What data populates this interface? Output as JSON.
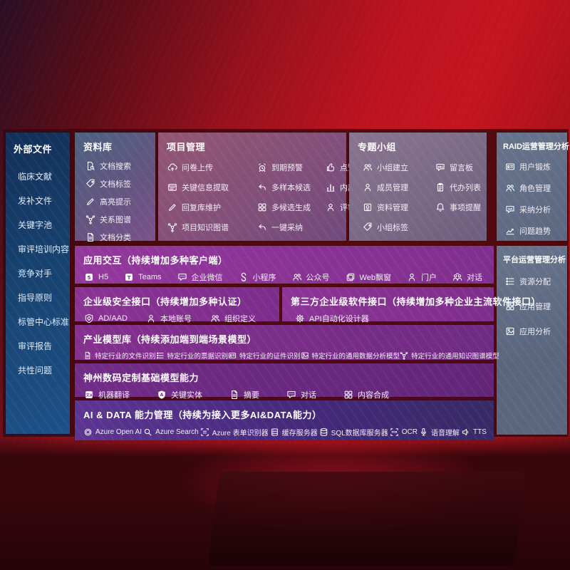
{
  "palette": {
    "background_red": "#c4141f",
    "sidebar_blue": "#17426f",
    "purple_row": "#802f8f",
    "indigo_row": "#45297a",
    "gray_panel": "#5b6880",
    "mauve_panel": "#82507a"
  },
  "sidebar": {
    "title": "外部文件",
    "items": [
      {
        "label": "临床文献"
      },
      {
        "label": "发补文件"
      },
      {
        "label": "关键字池"
      },
      {
        "label": "审评培训内容"
      },
      {
        "label": "竞争对手"
      },
      {
        "label": "指导原则"
      },
      {
        "label": "标管中心标准"
      },
      {
        "label": "审评报告"
      },
      {
        "label": "共性问题"
      }
    ]
  },
  "sections": {
    "library": {
      "title": "资料库",
      "items": [
        {
          "label": "文档搜索",
          "icon": "doc-search",
          "glyph": "doc-search"
        },
        {
          "label": "文档标签",
          "icon": "doc-tag",
          "glyph": "tag"
        },
        {
          "label": "高亮提示",
          "icon": "highlight-pen",
          "glyph": "pen"
        },
        {
          "label": "关系图谱",
          "icon": "relation-graph",
          "glyph": "graph"
        },
        {
          "label": "文档分类",
          "icon": "doc-category",
          "glyph": "doc"
        }
      ]
    },
    "project": {
      "title": "项目管理",
      "items": [
        {
          "label": "问卷上传",
          "icon": "questionnaire-upload",
          "glyph": "cloud-up"
        },
        {
          "label": "到期预警",
          "icon": "due-alarm",
          "glyph": "alarm"
        },
        {
          "label": "点赞感谢",
          "icon": "thumbs-up",
          "glyph": "thumb"
        },
        {
          "label": "关键信息提取",
          "icon": "key-info-extract",
          "glyph": "browser"
        },
        {
          "label": "多样本候选",
          "icon": "multi-sample-candidate",
          "glyph": "reply"
        },
        {
          "label": "内部专家排名",
          "icon": "expert-ranking",
          "glyph": "bars"
        },
        {
          "label": "回复库维护",
          "icon": "reply-library-maintain",
          "glyph": "pen"
        },
        {
          "label": "多候选生成",
          "icon": "multi-candidate-generate",
          "glyph": "grid"
        },
        {
          "label": "评审员画像",
          "icon": "reviewer-profile",
          "glyph": "person"
        },
        {
          "label": "项目知识图谱",
          "icon": "project-knowledge-graph",
          "glyph": "graph"
        },
        {
          "label": "一键采纳",
          "icon": "one-click-adopt",
          "glyph": "reply"
        }
      ]
    },
    "groups": {
      "title": "专题小组",
      "items": [
        {
          "label": "小组建立",
          "icon": "group-create",
          "glyph": "people"
        },
        {
          "label": "留言板",
          "icon": "message-board",
          "glyph": "bubble-bbs"
        },
        {
          "label": "成员管理",
          "icon": "member-management",
          "glyph": "person"
        },
        {
          "label": "代办列表",
          "icon": "todo-list",
          "glyph": "clip"
        },
        {
          "label": "资料管理",
          "icon": "material-management",
          "glyph": "album"
        },
        {
          "label": "事项提醒",
          "icon": "reminder-bell",
          "glyph": "bell"
        },
        {
          "label": "小组标签",
          "icon": "group-tag",
          "glyph": "tag"
        }
      ]
    },
    "raid": {
      "title": "RAID运营管理分析",
      "items": [
        {
          "label": "用户锻炼",
          "icon": "user-card",
          "glyph": "card"
        },
        {
          "label": "角色管理",
          "icon": "role-management",
          "glyph": "people"
        },
        {
          "label": "采纳分析",
          "icon": "adoption-analysis",
          "glyph": "bubble-qa"
        },
        {
          "label": "问题趋势",
          "icon": "issue-trend",
          "glyph": "chartline"
        }
      ]
    },
    "platform": {
      "title": "平台运营管理分析",
      "items": [
        {
          "label": "资源分配",
          "icon": "resource-allocation",
          "glyph": "list"
        },
        {
          "label": "应用管理",
          "icon": "app-management",
          "glyph": "grid"
        },
        {
          "label": "应用分析",
          "icon": "app-analysis",
          "glyph": "image"
        }
      ]
    },
    "interaction": {
      "title": "应用交互（持续增加多种客户端）",
      "items": [
        {
          "label": "H5",
          "icon": "h5",
          "glyph": "badge5"
        },
        {
          "label": "Teams",
          "icon": "teams",
          "glyph": "badgeT"
        },
        {
          "label": "企业微信",
          "icon": "wecom",
          "glyph": "bubble"
        },
        {
          "label": "小程序",
          "icon": "miniprogram",
          "glyph": "scurve"
        },
        {
          "label": "公众号",
          "icon": "official-account",
          "glyph": "people"
        },
        {
          "label": "Web飘窗",
          "icon": "web-popup",
          "glyph": "web"
        },
        {
          "label": "门户",
          "icon": "portal",
          "glyph": "person"
        },
        {
          "label": "对话",
          "icon": "dialog",
          "glyph": "duo"
        }
      ]
    },
    "security": {
      "title": "企业级安全接口（持续增加多种认证）",
      "items": [
        {
          "label": "AD/AAD",
          "icon": "ad-aad",
          "glyph": "shield"
        },
        {
          "label": "本地账号",
          "icon": "local-account",
          "glyph": "person"
        },
        {
          "label": "组织定义",
          "icon": "org-definition",
          "glyph": "people"
        }
      ]
    },
    "thirdparty": {
      "title": "第三方企业级软件接口（持续增加多种企业主流软件接口）",
      "items": [
        {
          "label": "API自动化设计器",
          "icon": "api-designer",
          "glyph": "gear"
        }
      ]
    },
    "models": {
      "title": "产业模型库（持续添加端到端场景模型）",
      "items": [
        {
          "label": "特定行业的文件识别",
          "icon": "industry-file-recognition",
          "glyph": "doc"
        },
        {
          "label": "特定行业的票据识别",
          "icon": "industry-invoice-recognition",
          "glyph": "list"
        },
        {
          "label": "特定行业的证件识别",
          "icon": "industry-id-recognition",
          "glyph": "card"
        },
        {
          "label": "特定行业的通用数据分析模型",
          "icon": "industry-data-analysis-model",
          "glyph": "image"
        },
        {
          "label": "特定行业的通用知识图谱模型",
          "icon": "industry-knowledge-graph-model",
          "glyph": "graph"
        }
      ]
    },
    "basemodel": {
      "title": "神州数码定制基础模型能力",
      "items": [
        {
          "label": "机器翻译",
          "icon": "machine-translation",
          "glyph": "badgeWen"
        },
        {
          "label": "关键实体",
          "icon": "key-entity",
          "glyph": "shield-a"
        },
        {
          "label": "摘要",
          "icon": "summary",
          "glyph": "doc"
        },
        {
          "label": "对话",
          "icon": "dialog-chat",
          "glyph": "bubble"
        },
        {
          "label": "内容合成",
          "icon": "content-synthesis",
          "glyph": "grid"
        }
      ]
    },
    "aidata": {
      "title": "AI & DATA 能力管理（持续为接入更多AI&DATA能力）",
      "items": [
        {
          "label": "Azure Open AI",
          "icon": "azure-openai",
          "glyph": "openai"
        },
        {
          "label": "Azure Search",
          "icon": "azure-search",
          "glyph": "search"
        },
        {
          "label": "Azure 表单识别器",
          "icon": "azure-form-recognizer",
          "glyph": "form"
        },
        {
          "label": "缓存服务器",
          "icon": "cache-server",
          "glyph": "server"
        },
        {
          "label": "SQL数据库服务器",
          "icon": "sql-server",
          "glyph": "db"
        },
        {
          "label": "OCR",
          "icon": "ocr",
          "glyph": "ocr"
        },
        {
          "label": "语音理解",
          "icon": "speech-understanding",
          "glyph": "mic"
        },
        {
          "label": "TTS",
          "icon": "tts",
          "glyph": "speaker"
        }
      ]
    }
  }
}
